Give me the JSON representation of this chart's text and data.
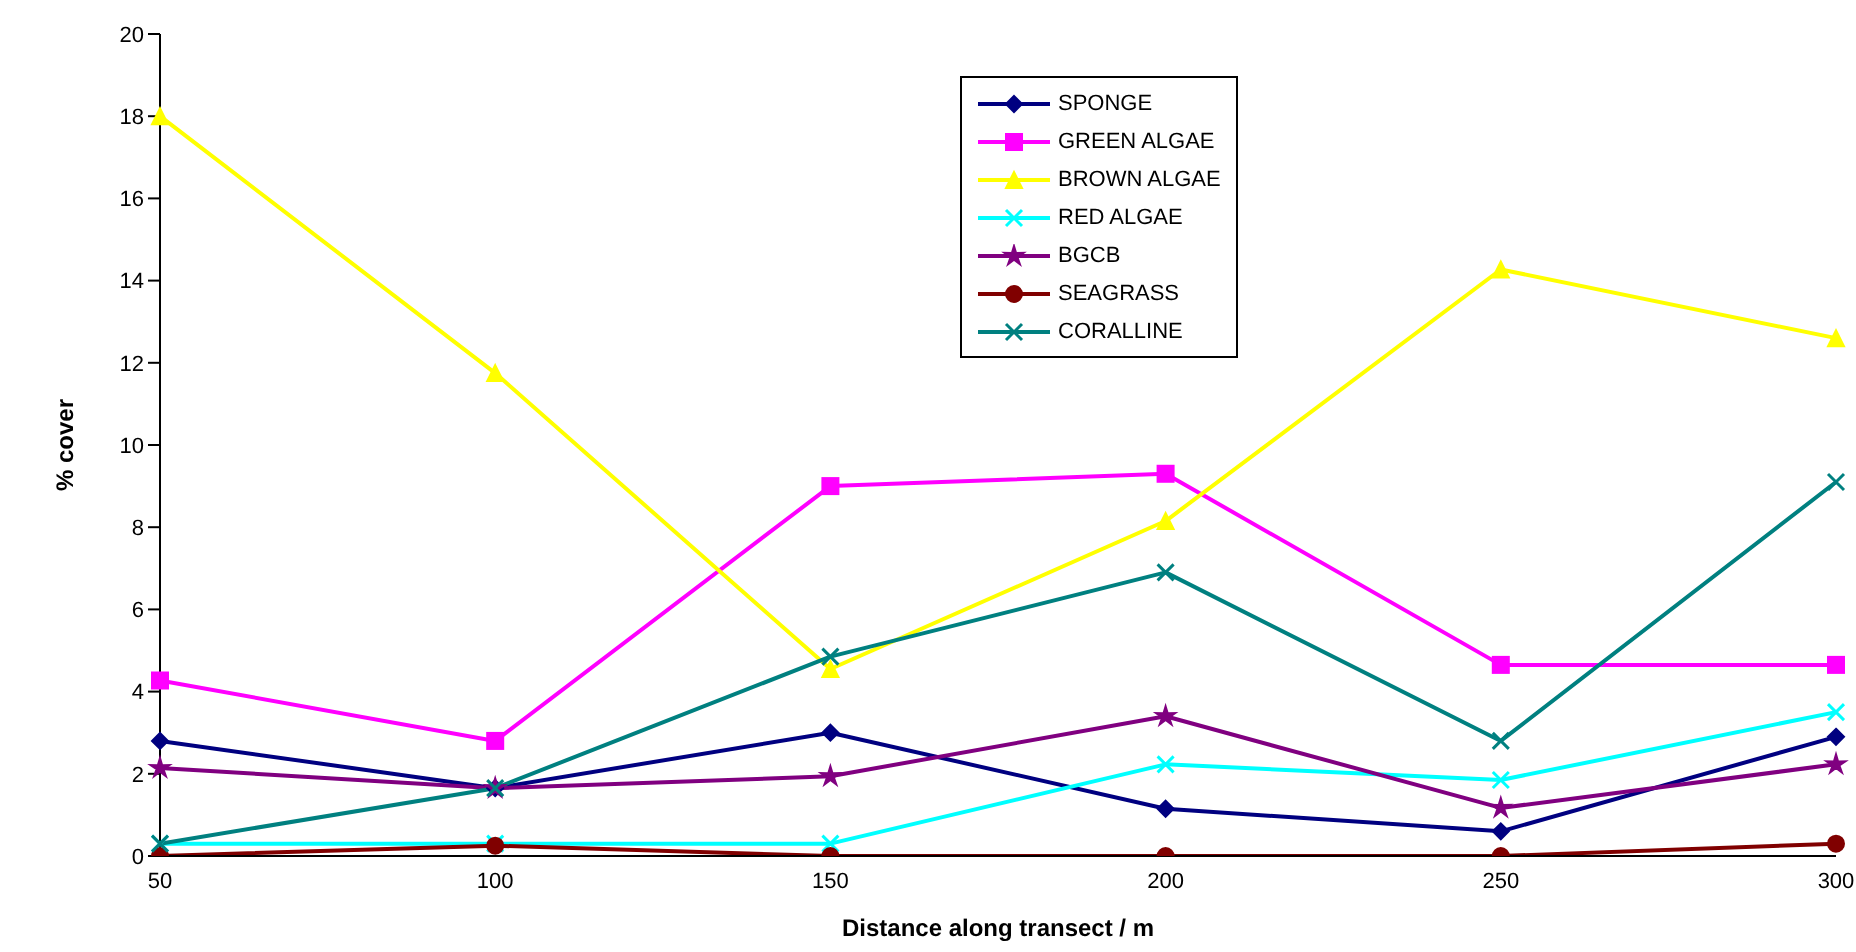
{
  "chart_data": {
    "type": "line",
    "xlabel": "Distance along transect / m",
    "ylabel": "% cover",
    "categories": [
      "50",
      "100",
      "150",
      "200",
      "250",
      "300"
    ],
    "ylim": [
      0,
      20
    ],
    "yticks": [
      0,
      2,
      4,
      6,
      8,
      10,
      12,
      14,
      16,
      18,
      20
    ],
    "grid": false,
    "legend": "top",
    "line_style": "solid",
    "series": [
      {
        "name": "SPONGE",
        "color": "#000080",
        "marker": "diamond",
        "values": [
          2.8,
          1.65,
          3.0,
          1.15,
          0.6,
          2.9
        ]
      },
      {
        "name": "GREEN ALGAE",
        "color": "#ff00ff",
        "marker": "square",
        "values": [
          4.27,
          2.8,
          9.0,
          9.3,
          4.65,
          4.65
        ]
      },
      {
        "name": "BROWN ALGAE",
        "color": "#ffff00",
        "marker": "triangle",
        "values": [
          18,
          11.75,
          4.55,
          8.15,
          14.27,
          12.6
        ]
      },
      {
        "name": "RED ALGAE",
        "color": "#00ffff",
        "marker": "cross",
        "values": [
          0.3,
          0.3,
          0.3,
          2.23,
          1.85,
          3.5
        ]
      },
      {
        "name": "BGCB",
        "color": "#800080",
        "marker": "star",
        "values": [
          2.14,
          1.65,
          1.94,
          3.4,
          1.17,
          2.23
        ]
      },
      {
        "name": "SEAGRASS",
        "color": "#800000",
        "marker": "circle",
        "values": [
          0,
          0.25,
          0,
          0,
          0,
          0.3
        ]
      },
      {
        "name": "CORALLINE",
        "color": "#008080",
        "marker": "cross",
        "values": [
          0.3,
          1.65,
          4.85,
          6.9,
          2.8,
          9.1
        ]
      }
    ]
  }
}
